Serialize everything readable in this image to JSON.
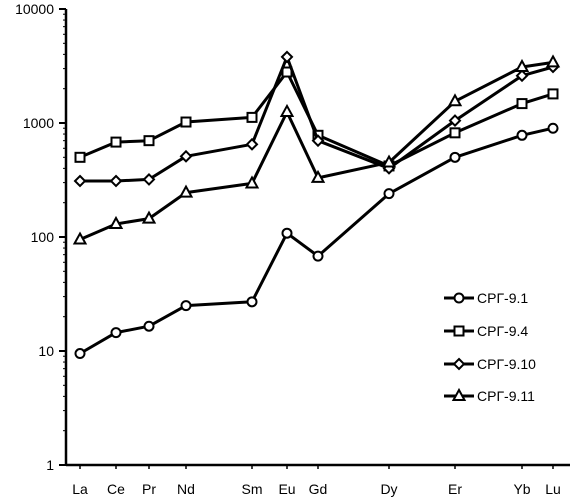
{
  "chart_data": {
    "type": "line",
    "title": "",
    "xlabel": "",
    "ylabel": "",
    "yscale": "log",
    "ylim": [
      1,
      10000
    ],
    "yticks": [
      "1",
      "10",
      "100",
      "1000",
      "10000"
    ],
    "categories": [
      "La",
      "Ce",
      "Pr",
      "Nd",
      "Sm",
      "Eu",
      "Gd",
      "Dy",
      "Er",
      "Yb",
      "Lu"
    ],
    "grid": false,
    "legend_position": "bottom-right",
    "series": [
      {
        "name": "СРГ-9.1",
        "marker": "circle",
        "values": [
          9.5,
          14.5,
          16.5,
          25,
          27,
          108,
          68,
          240,
          500,
          780,
          900
        ]
      },
      {
        "name": "СРГ-9.4",
        "marker": "square",
        "values": [
          500,
          680,
          700,
          1020,
          1120,
          2800,
          780,
          420,
          820,
          1480,
          1800
        ]
      },
      {
        "name": "СРГ-9.10",
        "marker": "diamond",
        "values": [
          310,
          310,
          320,
          510,
          650,
          3800,
          700,
          400,
          1050,
          2600,
          3100
        ]
      },
      {
        "name": "СРГ-9.11",
        "marker": "triangle",
        "values": [
          95,
          130,
          145,
          245,
          295,
          1250,
          330,
          450,
          1550,
          3100,
          3400
        ]
      }
    ]
  }
}
